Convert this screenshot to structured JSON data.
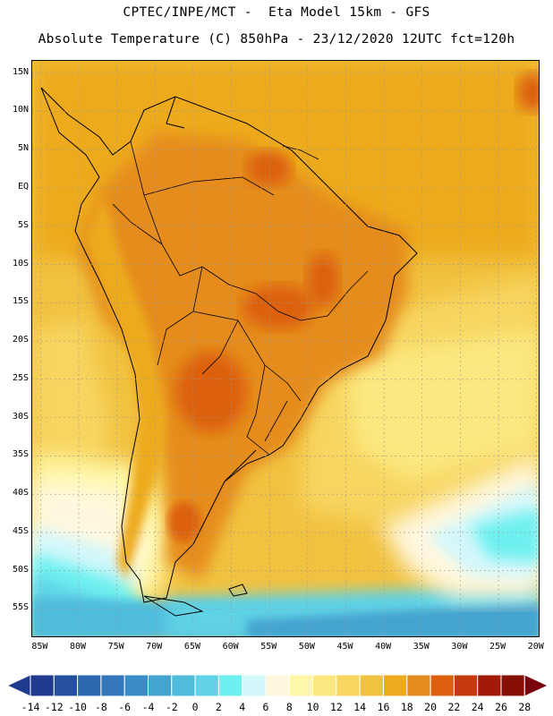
{
  "header": {
    "title_line1": "CPTEC/INPE/MCT -  Eta Model 15km - GFS",
    "title_line2": "Absolute Temperature (C) 850hPa - 23/12/2020 12UTC fct=120h"
  },
  "map": {
    "variable": "Absolute Temperature (C) 850hPa",
    "region": "South America",
    "lat_labels": [
      "15N",
      "10N",
      "5N",
      "EQ",
      "5S",
      "10S",
      "15S",
      "20S",
      "25S",
      "30S",
      "35S",
      "40S",
      "45S",
      "50S",
      "55S"
    ],
    "lon_labels": [
      "85W",
      "80W",
      "75W",
      "70W",
      "65W",
      "60W",
      "55W",
      "50W",
      "45W",
      "40W",
      "35W",
      "30W",
      "25W",
      "20W"
    ],
    "lat_values": [
      15,
      10,
      5,
      0,
      -5,
      -10,
      -15,
      -20,
      -25,
      -30,
      -35,
      -40,
      -45,
      -50,
      -55
    ],
    "lon_values": [
      -85,
      -80,
      -75,
      -70,
      -65,
      -60,
      -55,
      -50,
      -45,
      -40,
      -35,
      -30,
      -25,
      -20
    ]
  },
  "colorbar": {
    "labels": [
      "-14",
      "-12",
      "-10",
      "-8",
      "-6",
      "-4",
      "-2",
      "0",
      "2",
      "4",
      "6",
      "8",
      "10",
      "12",
      "14",
      "16",
      "18",
      "20",
      "22",
      "24",
      "26",
      "28"
    ],
    "colors": [
      "#1f3b8f",
      "#24509f",
      "#2c67b0",
      "#3478bb",
      "#3a8dc4",
      "#44a3cf",
      "#4fbcdc",
      "#5fd2e6",
      "#6ef0f0",
      "#d3f7fb",
      "#fff8df",
      "#fff7a8",
      "#fbe880",
      "#f7d560",
      "#f1c240",
      "#edaa1e",
      "#e58c1e",
      "#dc6010",
      "#c43a0c",
      "#a21a08",
      "#861006"
    ],
    "under_color": "#1f3b8f",
    "over_color": "#7a0010"
  }
}
